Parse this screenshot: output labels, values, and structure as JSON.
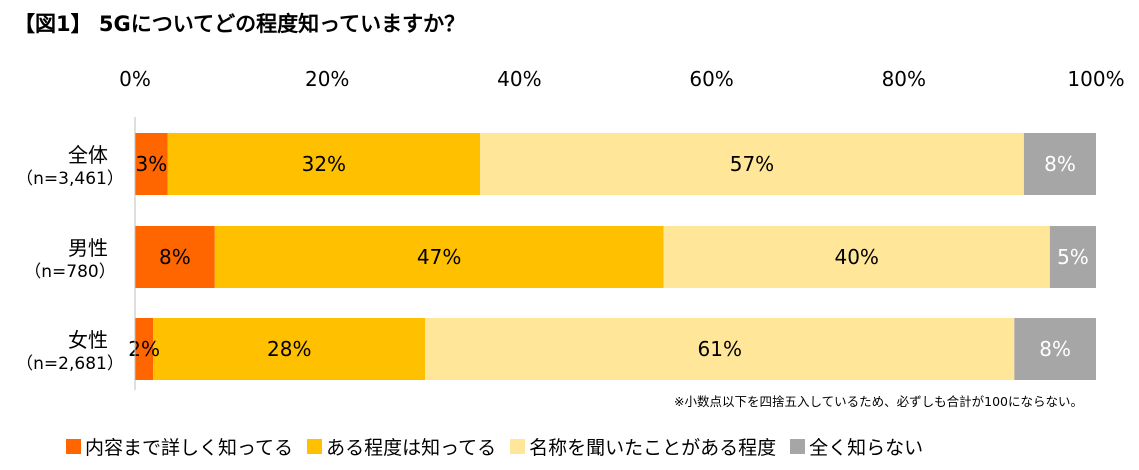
{
  "title": "【図1】 5Gについてどの程度知っていますか？",
  "note": "※小数点以下を四捨五入しているため、必ずしも合計が100にならない。",
  "chart_data": {
    "type": "bar",
    "orientation": "horizontal",
    "stacked": true,
    "xlim": [
      0,
      100
    ],
    "x_ticks": [
      "0%",
      "20%",
      "40%",
      "60%",
      "80%",
      "100%"
    ],
    "grid": false,
    "legend_position": "bottom",
    "categories": [
      {
        "name": "全体",
        "n": "（n=3,461）"
      },
      {
        "name": "男性",
        "n": "（n=780）"
      },
      {
        "name": "女性",
        "n": "（n=2,681）"
      }
    ],
    "series": [
      {
        "name": "内容まで詳しく知ってる",
        "color": "#ff6600",
        "values": [
          3.4,
          8.3,
          1.9
        ],
        "labels": [
          "3%",
          "8%",
          "2%"
        ]
      },
      {
        "name": "ある程度は知ってる",
        "color": "#ffc000",
        "values": [
          32.5,
          46.7,
          28.3
        ],
        "labels": [
          "32%",
          "47%",
          "28%"
        ]
      },
      {
        "name": "名称を聞いたことがある程度",
        "color": "#ffe699",
        "values": [
          56.6,
          40.2,
          61.3
        ],
        "labels": [
          "57%",
          "40%",
          "61%"
        ]
      },
      {
        "name": "全く知らない",
        "color": "#a6a6a6",
        "values": [
          7.5,
          4.8,
          8.5
        ],
        "labels": [
          "8%",
          "5%",
          "8%"
        ]
      }
    ]
  }
}
